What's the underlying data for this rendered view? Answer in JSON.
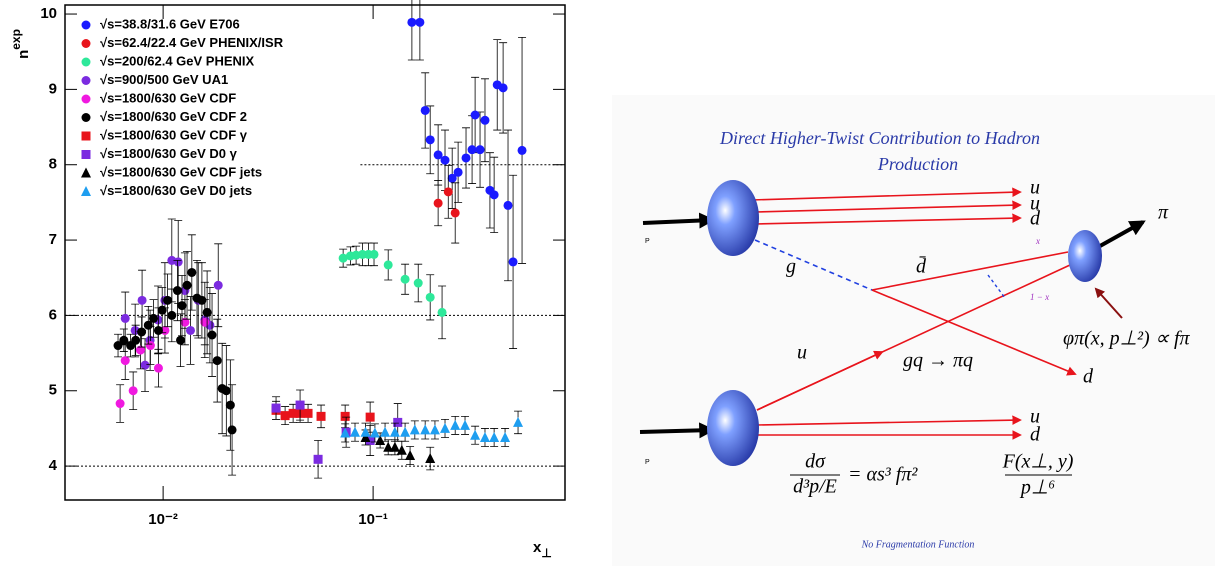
{
  "chart_data": {
    "type": "scatter",
    "xscale": "log",
    "y_label": "n",
    "y_label_sup": "exp",
    "x_label": "x",
    "x_label_sub": "⊥",
    "xlim": [
      0.00341,
      0.82
    ],
    "ylim": [
      3.55,
      10.12
    ],
    "xticks": [
      {
        "value": 0.01,
        "label": "10⁻²"
      },
      {
        "value": 0.1,
        "label": "10⁻¹"
      }
    ],
    "yticks": [
      4,
      5,
      6,
      7,
      8,
      9,
      10
    ],
    "reference_lines": [
      {
        "y": 4
      },
      {
        "y": 6
      },
      {
        "y": 8,
        "x_from": 0.087
      }
    ],
    "series": [
      {
        "name": "√s=38.8/31.6 GeV E706",
        "color": "#1a1aff",
        "marker": "circle",
        "x": [
          0.153,
          0.167,
          0.177,
          0.187,
          0.204,
          0.22,
          0.238,
          0.254,
          0.277,
          0.296,
          0.306,
          0.323,
          0.341,
          0.36,
          0.377,
          0.39,
          0.416,
          0.439,
          0.464,
          0.512
        ],
        "values": [
          9.89,
          9.89,
          8.72,
          8.33,
          8.13,
          8.06,
          7.82,
          7.9,
          8.09,
          8.2,
          8.66,
          8.2,
          8.59,
          7.66,
          7.6,
          9.06,
          9.02,
          7.46,
          6.71,
          8.19
        ],
        "errors": [
          0.5,
          0.5,
          0.5,
          0.45,
          0.4,
          0.4,
          0.4,
          0.4,
          0.4,
          0.45,
          0.5,
          0.5,
          0.55,
          0.5,
          0.5,
          0.6,
          0.6,
          1.0,
          1.15,
          1.5
        ]
      },
      {
        "name": "√s=62.4/22.4 GeV PHENIX/ISR",
        "color": "#e8141c",
        "marker": "circle",
        "x": [
          0.204,
          0.228,
          0.246
        ],
        "values": [
          7.49,
          7.64,
          7.36
        ],
        "errors": [
          0.3,
          0.35,
          0.4
        ]
      },
      {
        "name": "√s=200/62.4 GeV PHENIX",
        "color": "#2ee89a",
        "marker": "circle",
        "x": [
          0.072,
          0.078,
          0.083,
          0.089,
          0.095,
          0.101,
          0.118,
          0.142,
          0.164,
          0.187,
          0.213
        ],
        "values": [
          6.76,
          6.79,
          6.8,
          6.81,
          6.81,
          6.81,
          6.67,
          6.48,
          6.43,
          6.24,
          6.04
        ],
        "errors": [
          0.12,
          0.12,
          0.12,
          0.15,
          0.15,
          0.15,
          0.2,
          0.2,
          0.25,
          0.3,
          0.35
        ]
      },
      {
        "name": "√s=900/500 GeV UA1",
        "color": "#7b2be0",
        "marker": "circle",
        "x": [
          0.0066,
          0.00736,
          0.00794,
          0.0082,
          0.00867,
          0.00946,
          0.0102,
          0.011,
          0.0118,
          0.0127,
          0.0135,
          0.0147,
          0.0158,
          0.0167,
          0.0183
        ],
        "values": [
          5.96,
          5.8,
          6.2,
          5.34,
          5.67,
          5.94,
          6.2,
          6.73,
          6.71,
          6.33,
          5.8,
          6.2,
          5.94,
          5.87,
          6.4
        ],
        "errors": [
          0.35,
          0.35,
          0.4,
          0.35,
          0.4,
          0.45,
          0.5,
          0.55,
          0.55,
          0.5,
          0.45,
          0.5,
          0.5,
          0.5,
          0.55
        ]
      },
      {
        "name": "√s=1800/630 GeV CDF",
        "color": "#f019e0",
        "marker": "circle",
        "x": [
          0.00624,
          0.0066,
          0.0072,
          0.0078,
          0.0087,
          0.0095,
          0.0102,
          0.0127,
          0.0158
        ],
        "values": [
          4.83,
          5.4,
          5.0,
          5.54,
          5.6,
          5.3,
          5.8,
          5.91,
          5.91
        ],
        "errors": [
          0.25,
          0.25,
          0.25,
          0.25,
          0.25,
          0.25,
          0.3,
          0.3,
          0.3
        ]
      },
      {
        "name": "√s=1800/630 GeV CDF 2",
        "color": "#000000",
        "marker": "circle",
        "x": [
          0.0061,
          0.0065,
          0.007,
          0.0074,
          0.0079,
          0.0085,
          0.009,
          0.0095,
          0.0099,
          0.0105,
          0.011,
          0.0117,
          0.0121,
          0.0123,
          0.013,
          0.0137,
          0.0145,
          0.0153,
          0.0162,
          0.0171,
          0.0181,
          0.0191,
          0.02,
          0.0209,
          0.0213
        ],
        "values": [
          5.6,
          5.67,
          5.6,
          5.67,
          5.78,
          5.87,
          5.96,
          5.8,
          6.07,
          6.2,
          6.0,
          6.33,
          5.67,
          6.13,
          6.4,
          6.57,
          6.23,
          6.2,
          6.04,
          5.74,
          5.4,
          5.03,
          5.0,
          4.81,
          4.48
        ],
        "errors": [
          0.15,
          0.15,
          0.15,
          0.2,
          0.2,
          0.25,
          0.25,
          0.3,
          0.3,
          0.35,
          0.35,
          0.4,
          0.35,
          0.4,
          0.45,
          0.5,
          0.5,
          0.5,
          0.55,
          0.55,
          0.55,
          0.6,
          0.6,
          0.6,
          0.6
        ]
      },
      {
        "name": "√s=1800/630 GeV CDF γ",
        "color": "#e8141c",
        "marker": "square",
        "x": [
          0.0345,
          0.0381,
          0.0416,
          0.0449,
          0.049,
          0.0565,
          0.0736,
          0.0968
        ],
        "values": [
          4.74,
          4.67,
          4.7,
          4.7,
          4.7,
          4.66,
          4.66,
          4.65
        ],
        "errors": [
          0.12,
          0.12,
          0.12,
          0.12,
          0.12,
          0.15,
          0.15,
          0.2
        ]
      },
      {
        "name": "√s=1800/630 GeV D0 γ",
        "color": "#7b2be0",
        "marker": "square",
        "x": [
          0.0345,
          0.0449,
          0.0547,
          0.0744,
          0.0968,
          0.131
        ],
        "values": [
          4.77,
          4.81,
          4.09,
          4.45,
          4.34,
          4.58
        ],
        "errors": [
          0.15,
          0.2,
          0.25,
          0.2,
          0.2,
          0.25
        ]
      },
      {
        "name": "√s=1800/630 GeV CDF jets",
        "color": "#000000",
        "marker": "triangle",
        "x": [
          0.092,
          0.108,
          0.118,
          0.127,
          0.137,
          0.15,
          0.187
        ],
        "values": [
          4.38,
          4.34,
          4.25,
          4.25,
          4.21,
          4.14,
          4.1
        ],
        "errors": [
          0.1,
          0.1,
          0.1,
          0.1,
          0.12,
          0.12,
          0.15
        ]
      },
      {
        "name": "√s=1800/630 GeV D0 jets",
        "color": "#1e9ef0",
        "marker": "triangle",
        "x": [
          0.0736,
          0.082,
          0.092,
          0.102,
          0.114,
          0.127,
          0.142,
          0.158,
          0.177,
          0.197,
          0.22,
          0.246,
          0.274,
          0.306,
          0.341,
          0.377,
          0.425,
          0.49
        ],
        "values": [
          4.44,
          4.45,
          4.45,
          4.44,
          4.45,
          4.45,
          4.45,
          4.48,
          4.48,
          4.48,
          4.5,
          4.54,
          4.54,
          4.41,
          4.38,
          4.38,
          4.38,
          4.58
        ],
        "errors": [
          0.12,
          0.12,
          0.12,
          0.12,
          0.12,
          0.12,
          0.12,
          0.12,
          0.12,
          0.12,
          0.12,
          0.12,
          0.12,
          0.12,
          0.12,
          0.12,
          0.12,
          0.15
        ]
      }
    ]
  },
  "diagram": {
    "title_lines": [
      "Direct Higher-Twist Contribution to Hadron",
      "Production"
    ],
    "proton_labels": [
      "P",
      "P"
    ],
    "upper_quarks": [
      "u",
      "u",
      "d"
    ],
    "lower_quarks": [
      "u",
      "d"
    ],
    "pion": "π",
    "gluon": "g",
    "antiquark": "d̄",
    "momentum_fraction": "x",
    "momentum_remainder": "1 − x",
    "incoming_quark": "u",
    "subprocess": "gq → πq",
    "outgoing_quark": "d",
    "wavefunction": "φπ(x, p⊥²) ∝ fπ",
    "formula": {
      "lhs_num": "dσ",
      "lhs_den": "d³p/E",
      "middle": "= αs³ fπ²",
      "rhs_num": "F(x⊥, y)",
      "rhs_den": "p⊥⁶"
    },
    "footnote": "No Fragmentation Function"
  }
}
